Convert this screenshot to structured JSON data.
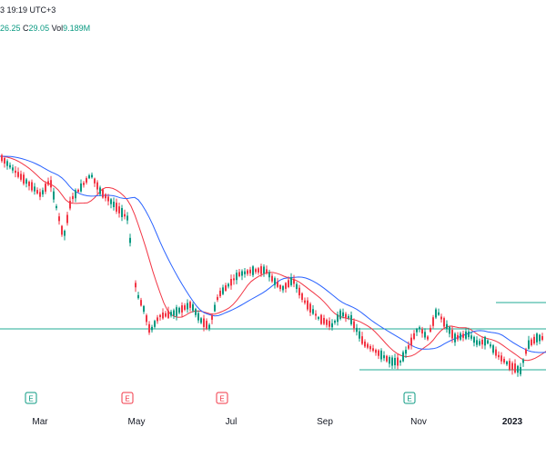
{
  "header": {
    "datetime": "3 19:19 UTC+3",
    "ohlc_values": [
      {
        "label": "",
        "value": "26.25"
      },
      {
        "label": "C",
        "value": "29.05"
      }
    ],
    "volume_label": "Vol",
    "volume_value": "9.189M"
  },
  "colors": {
    "up": "#089981",
    "down": "#f23645",
    "sma_fast": "#f23645",
    "sma_slow": "#2962ff",
    "hline": "#22ab94",
    "earnings_border": "#089981",
    "earnings_border_alt": "#f23645",
    "axis_text": "#131722"
  },
  "icons": {
    "earnings": "earnings-e-icon"
  },
  "chart_data": {
    "type": "candlestick",
    "title": "",
    "xlabel": "",
    "ylabel": "",
    "x_axis_labels": [
      "Mar",
      "May",
      "Jul",
      "Sep",
      "Nov",
      "2023"
    ],
    "earnings_markers": [
      {
        "label": "E",
        "near": "Mar",
        "result": "positive"
      },
      {
        "label": "E",
        "near": "May",
        "result": "negative"
      },
      {
        "label": "E",
        "near": "Jul",
        "result": "negative"
      },
      {
        "label": "E",
        "near": "Nov",
        "result": "positive"
      }
    ],
    "overlays": [
      {
        "type": "moving_average",
        "color": "red"
      },
      {
        "type": "moving_average",
        "color": "blue"
      }
    ],
    "horizontal_levels": [
      {
        "desc": "upper level",
        "from_label": "Nov"
      },
      {
        "desc": "mid level",
        "from_label": "Mar"
      },
      {
        "desc": "lower level",
        "from_label": "Sep"
      }
    ],
    "price_path": [
      [
        0,
        172
      ],
      [
        20,
        192
      ],
      [
        35,
        205
      ],
      [
        45,
        215
      ],
      [
        55,
        198
      ],
      [
        62,
        228
      ],
      [
        70,
        262
      ],
      [
        78,
        220
      ],
      [
        90,
        205
      ],
      [
        100,
        192
      ],
      [
        110,
        210
      ],
      [
        125,
        225
      ],
      [
        140,
        240
      ],
      [
        150,
        322
      ],
      [
        158,
        340
      ],
      [
        165,
        365
      ],
      [
        175,
        348
      ],
      [
        190,
        345
      ],
      [
        210,
        335
      ],
      [
        220,
        352
      ],
      [
        230,
        360
      ],
      [
        240,
        325
      ],
      [
        250,
        315
      ],
      [
        262,
        302
      ],
      [
        278,
        298
      ],
      [
        292,
        297
      ],
      [
        300,
        308
      ],
      [
        310,
        318
      ],
      [
        322,
        308
      ],
      [
        335,
        332
      ],
      [
        350,
        350
      ],
      [
        365,
        358
      ],
      [
        375,
        345
      ],
      [
        385,
        350
      ],
      [
        400,
        378
      ],
      [
        415,
        388
      ],
      [
        430,
        398
      ],
      [
        440,
        398
      ],
      [
        450,
        380
      ],
      [
        460,
        360
      ],
      [
        470,
        372
      ],
      [
        480,
        342
      ],
      [
        490,
        358
      ],
      [
        500,
        372
      ],
      [
        515,
        368
      ],
      [
        525,
        378
      ],
      [
        535,
        375
      ],
      [
        548,
        392
      ],
      [
        560,
        402
      ],
      [
        572,
        408
      ],
      [
        580,
        380
      ],
      [
        590,
        372
      ],
      [
        600,
        372
      ]
    ]
  }
}
